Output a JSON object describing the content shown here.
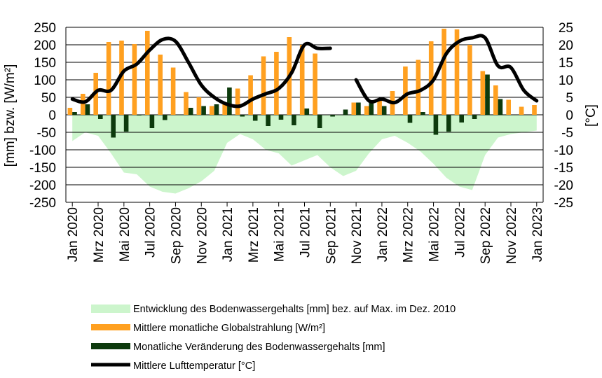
{
  "chart_data": {
    "type": "bar",
    "x": [
      "2020-01",
      "2020-02",
      "2020-03",
      "2020-04",
      "2020-05",
      "2020-06",
      "2020-07",
      "2020-08",
      "2020-09",
      "2020-10",
      "2020-11",
      "2020-12",
      "2021-01",
      "2021-02",
      "2021-03",
      "2021-04",
      "2021-05",
      "2021-06",
      "2021-07",
      "2021-08",
      "2021-09",
      "2021-10",
      "2021-11",
      "2021-12",
      "2022-01",
      "2022-02",
      "2022-03",
      "2022-04",
      "2022-05",
      "2022-06",
      "2022-07",
      "2022-08",
      "2022-09",
      "2022-10",
      "2022-11",
      "2022-12",
      "2023-01"
    ],
    "tick_labels": [
      "Jan 2020",
      "Mrz 2020",
      "Mai 2020",
      "Jul 2020",
      "Sep 2020",
      "Nov 2020",
      "Jan 2021",
      "Mrz 2021",
      "Mai 2021",
      "Jul 2021",
      "Sep 2021",
      "Nov 2021",
      "Jan 2022",
      "Mrz 2022",
      "Mai 2022",
      "Jul 2022",
      "Sep 2022",
      "Nov 2022",
      "Jan 2023"
    ],
    "ylabel_left": "[mm] bzw. [W/m²]",
    "ylabel_right": "[°C]",
    "ylim_left": [
      -250,
      250
    ],
    "ylim_right": [
      -25,
      25
    ],
    "yticks_left": [
      250,
      200,
      150,
      100,
      50,
      0,
      -50,
      -100,
      -150,
      -200,
      -250
    ],
    "yticks_right": [
      25,
      20,
      15,
      10,
      5,
      0,
      -5,
      -10,
      -15,
      -20,
      -25
    ],
    "grid": true,
    "legend_placement": "bottom",
    "series": [
      {
        "name": "Entwicklung des Bodenwassergehalts [mm] bez. auf Max. im Dez. 2010",
        "kind": "area",
        "axis": "left",
        "color": "#ccf5cc",
        "values": [
          -75,
          -50,
          -60,
          -110,
          -165,
          -170,
          -205,
          -220,
          -225,
          -210,
          -190,
          -160,
          -80,
          -55,
          -70,
          -100,
          -110,
          -145,
          -130,
          -115,
          -150,
          -175,
          -160,
          -110,
          -70,
          -60,
          -80,
          -105,
          -140,
          -180,
          -205,
          -215,
          -115,
          -65,
          -55,
          -50,
          -45
        ]
      },
      {
        "name": "Mittlere monatliche Globalstrahlung [W/m²]",
        "kind": "bar",
        "axis": "left",
        "color": "#ffa020",
        "values": [
          20,
          60,
          120,
          208,
          212,
          202,
          240,
          172,
          135,
          65,
          50,
          25,
          30,
          75,
          113,
          167,
          180,
          222,
          200,
          175,
          null,
          null,
          35,
          25,
          42,
          68,
          138,
          157,
          210,
          246,
          244,
          200,
          125,
          84,
          43,
          23,
          28
        ]
      },
      {
        "name": "Monatliche Veränderung des Bodenwassergehalts [mm]",
        "kind": "bar",
        "axis": "left",
        "color": "#0d3a0d",
        "values": [
          8,
          30,
          -12,
          -65,
          -48,
          -2,
          -38,
          -15,
          0,
          20,
          25,
          30,
          78,
          -5,
          -17,
          -32,
          -14,
          -30,
          18,
          -38,
          -5,
          15,
          35,
          35,
          25,
          0,
          -23,
          8,
          -57,
          -48,
          -22,
          -12,
          115,
          45,
          0,
          0,
          0
        ]
      },
      {
        "name": "Mittlere Lufttemperatur [°C]",
        "kind": "line",
        "axis": "right",
        "color": "#000000",
        "values": [
          4.5,
          3.7,
          7,
          7,
          12.5,
          14.5,
          18.5,
          21.5,
          21,
          15,
          8.5,
          5,
          3,
          2.5,
          4.5,
          6,
          7.5,
          12,
          20,
          19,
          19,
          null,
          10,
          4,
          4.5,
          3.5,
          6,
          7,
          10,
          17.5,
          21,
          22,
          22,
          14,
          13.5,
          7,
          4
        ]
      }
    ]
  }
}
